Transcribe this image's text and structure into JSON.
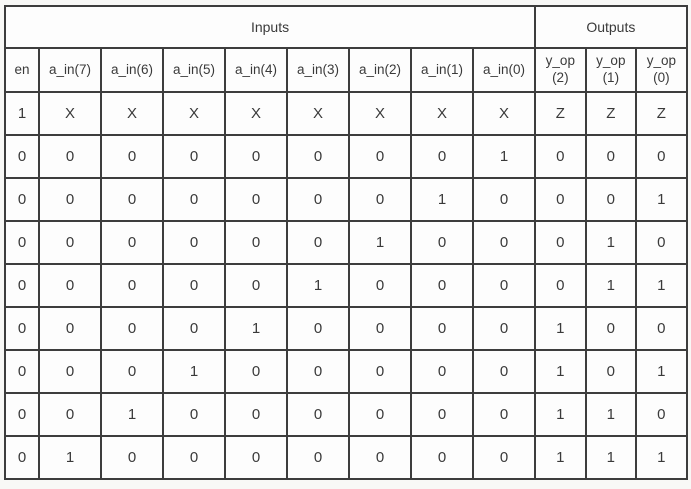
{
  "colors": {
    "border": "#3d3d3d",
    "text": "#3a3a3a",
    "cell_background": "#fdfdfd",
    "page_background": "#f8f8f6"
  },
  "table": {
    "kind": "truth-table",
    "groups": [
      {
        "id": "inputs",
        "label": "Inputs",
        "span": 9
      },
      {
        "id": "outputs",
        "label": "Outputs",
        "span": 3
      }
    ],
    "columns": [
      {
        "id": "en",
        "group": "inputs",
        "label": "en"
      },
      {
        "id": "a_in_7",
        "group": "inputs",
        "label": "a_in(7)"
      },
      {
        "id": "a_in_6",
        "group": "inputs",
        "label": "a_in(6)"
      },
      {
        "id": "a_in_5",
        "group": "inputs",
        "label": "a_in(5)"
      },
      {
        "id": "a_in_4",
        "group": "inputs",
        "label": "a_in(4)"
      },
      {
        "id": "a_in_3",
        "group": "inputs",
        "label": "a_in(3)"
      },
      {
        "id": "a_in_2",
        "group": "inputs",
        "label": "a_in(2)"
      },
      {
        "id": "a_in_1",
        "group": "inputs",
        "label": "a_in(1)"
      },
      {
        "id": "a_in_0",
        "group": "inputs",
        "label": "a_in(0)"
      },
      {
        "id": "y_op_2",
        "group": "outputs",
        "label": "y_op\n(2)"
      },
      {
        "id": "y_op_1",
        "group": "outputs",
        "label": "y_op\n(1)"
      },
      {
        "id": "y_op_0",
        "group": "outputs",
        "label": "y_op\n(0)"
      }
    ],
    "rows": [
      [
        "1",
        "X",
        "X",
        "X",
        "X",
        "X",
        "X",
        "X",
        "X",
        "Z",
        "Z",
        "Z"
      ],
      [
        "0",
        "0",
        "0",
        "0",
        "0",
        "0",
        "0",
        "0",
        "1",
        "0",
        "0",
        "0"
      ],
      [
        "0",
        "0",
        "0",
        "0",
        "0",
        "0",
        "0",
        "1",
        "0",
        "0",
        "0",
        "1"
      ],
      [
        "0",
        "0",
        "0",
        "0",
        "0",
        "0",
        "1",
        "0",
        "0",
        "0",
        "1",
        "0"
      ],
      [
        "0",
        "0",
        "0",
        "0",
        "0",
        "1",
        "0",
        "0",
        "0",
        "0",
        "1",
        "1"
      ],
      [
        "0",
        "0",
        "0",
        "0",
        "1",
        "0",
        "0",
        "0",
        "0",
        "1",
        "0",
        "0"
      ],
      [
        "0",
        "0",
        "0",
        "1",
        "0",
        "0",
        "0",
        "0",
        "0",
        "1",
        "0",
        "1"
      ],
      [
        "0",
        "0",
        "1",
        "0",
        "0",
        "0",
        "0",
        "0",
        "0",
        "1",
        "1",
        "0"
      ],
      [
        "0",
        "1",
        "0",
        "0",
        "0",
        "0",
        "0",
        "0",
        "0",
        "1",
        "1",
        "1"
      ]
    ]
  }
}
